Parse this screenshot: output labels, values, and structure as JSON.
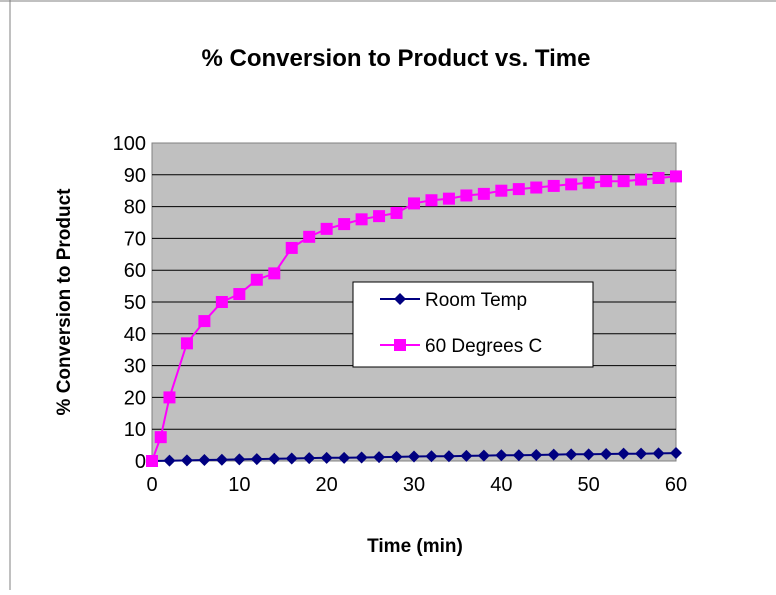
{
  "chart_data": {
    "type": "line",
    "title": "% Conversion to Product vs. Time",
    "xlabel": "Time (min)",
    "ylabel": "% Conversion to Product",
    "xlim": [
      0,
      60
    ],
    "ylim": [
      0,
      100
    ],
    "xticks": [
      0,
      10,
      20,
      30,
      40,
      50,
      60
    ],
    "yticks": [
      0,
      10,
      20,
      30,
      40,
      50,
      60,
      70,
      80,
      90,
      100
    ],
    "grid": true,
    "plot_background": "#c0c0c0",
    "legend_position": "center-right inside plot",
    "series": [
      {
        "name": "Room Temp",
        "color": "#000080",
        "marker": "diamond",
        "x": [
          0,
          2,
          4,
          6,
          8,
          10,
          12,
          14,
          16,
          18,
          20,
          22,
          24,
          26,
          28,
          30,
          32,
          34,
          36,
          38,
          40,
          42,
          44,
          46,
          48,
          50,
          52,
          54,
          56,
          58,
          60
        ],
        "y": [
          0,
          0.1,
          0.2,
          0.3,
          0.4,
          0.5,
          0.6,
          0.7,
          0.8,
          0.9,
          1.0,
          1.0,
          1.1,
          1.2,
          1.3,
          1.4,
          1.5,
          1.5,
          1.6,
          1.7,
          1.8,
          1.8,
          1.9,
          2.0,
          2.1,
          2.1,
          2.2,
          2.3,
          2.3,
          2.4,
          2.5
        ]
      },
      {
        "name": "60 Degrees C",
        "color": "#ff00ff",
        "marker": "square",
        "x": [
          0,
          1,
          2,
          4,
          6,
          8,
          10,
          12,
          14,
          16,
          18,
          20,
          22,
          24,
          26,
          28,
          30,
          32,
          34,
          36,
          38,
          40,
          42,
          44,
          46,
          48,
          50,
          52,
          54,
          56,
          58,
          60
        ],
        "y": [
          0,
          7.5,
          20,
          37,
          44,
          50,
          52.5,
          57,
          59,
          67,
          70.5,
          73,
          74.5,
          76,
          77,
          78,
          81,
          82,
          82.5,
          83.5,
          84,
          85,
          85.5,
          86,
          86.5,
          87,
          87.5,
          88,
          88,
          88.5,
          89,
          89.5
        ]
      }
    ]
  }
}
